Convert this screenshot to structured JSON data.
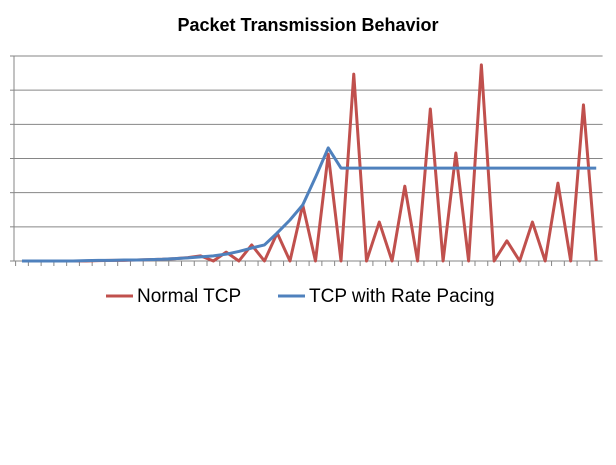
{
  "chart_data": {
    "type": "line",
    "title": "Packet Transmission Behavior",
    "categories": [
      null,
      null,
      null,
      null,
      null,
      null,
      null,
      null,
      null,
      null,
      null,
      null,
      null,
      null,
      null,
      null,
      null,
      null,
      null,
      null,
      null,
      null,
      null,
      null,
      null,
      null,
      null,
      null,
      null,
      null,
      null,
      null,
      null,
      null,
      null,
      null,
      null,
      null,
      null,
      null,
      null,
      null,
      null,
      null,
      null,
      null
    ],
    "series": [
      {
        "name": "Normal TCP",
        "color": "#c0504d",
        "values": [
          0,
          0,
          0,
          0,
          0,
          0,
          0.01,
          0.02,
          0.02,
          0.03,
          0.04,
          0.05,
          0.07,
          0.1,
          0.15,
          0,
          0.26,
          0,
          0.47,
          0,
          0.82,
          0,
          1.64,
          0,
          3.13,
          0,
          5.47,
          0,
          1.14,
          0,
          2.19,
          0,
          4.45,
          0,
          3.16,
          0,
          5.74,
          0,
          0.59,
          0,
          1.14,
          0,
          2.28,
          0,
          4.57,
          0
        ]
      },
      {
        "name": "TCP with Rate Pacing",
        "color": "#4f81bd",
        "values": [
          0,
          0,
          0,
          0,
          0,
          0.01,
          0.02,
          0.02,
          0.03,
          0.03,
          0.04,
          0.05,
          0.07,
          0.09,
          0.12,
          0.15,
          0.2,
          0.28,
          0.38,
          0.47,
          0.82,
          1.2,
          1.64,
          2.45,
          3.31,
          2.72,
          2.72,
          2.72,
          2.72,
          2.72,
          2.72,
          2.72,
          2.72,
          2.72,
          2.72,
          2.72,
          2.72,
          2.72,
          2.72,
          2.72,
          2.72,
          2.72,
          2.72,
          2.72,
          2.72,
          2.72
        ]
      }
    ],
    "ylim": [
      0,
      6
    ],
    "yticks": [
      0,
      1,
      2,
      3,
      4,
      5,
      6
    ],
    "grid": true
  }
}
